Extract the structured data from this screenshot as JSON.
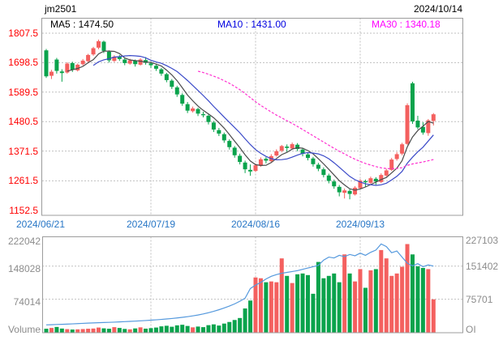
{
  "header": {
    "symbol": "jm2501",
    "date": "2024/10/14"
  },
  "ma_labels": {
    "ma5": "MA5 : 1474.50",
    "ma10": "MA10 : 1431.00",
    "ma30": "MA30 : 1340.18"
  },
  "price_axis_labels": [
    "1807.5",
    "1698.5",
    "1589.5",
    "1480.5",
    "1371.5",
    "1261.5",
    "1152.5"
  ],
  "x_axis_labels": [
    "2024/06/21",
    "2024/07/19",
    "2024/08/16",
    "2024/09/13"
  ],
  "volume_axis": {
    "left_labels": [
      "222042",
      "148028",
      "74014"
    ],
    "left_title": "Volume",
    "right_labels": [
      "227103",
      "151402",
      "75701"
    ],
    "right_title": "OI"
  },
  "colors": {
    "up": "#f4605f",
    "down": "#0aa34c",
    "ma5_line": "#4a4a4a",
    "ma10_line": "#3a49c8",
    "ma30_line": "#ff30d0",
    "oi_line": "#5599dd",
    "price_label": "#ff0000",
    "date_label": "#2776c6",
    "volume_label": "#8c8c8c"
  },
  "chart_data": {
    "type": "candlestick",
    "title": "jm2501 daily K-line with MA5/MA10/MA30, volume and open interest",
    "legend_position": "top-inside",
    "grid": true,
    "price_grid_values": [
      1807.5,
      1698.5,
      1589.5,
      1480.5,
      1371.5,
      1261.5
    ],
    "price_axis_min_label": 1152.5,
    "x_ticks": [
      {
        "index": 0,
        "label": "2024/06/21"
      },
      {
        "index": 20,
        "label": "2024/07/19"
      },
      {
        "index": 40,
        "label": "2024/08/16"
      },
      {
        "index": 60,
        "label": "2024/09/13"
      }
    ],
    "ma_periods": [
      5,
      10,
      30
    ],
    "ma_current": {
      "MA5": 1474.5,
      "MA10": 1431.0,
      "MA30": 1340.18
    },
    "volume_left_ticks": [
      222042,
      148028,
      74014
    ],
    "volume_right_ticks": [
      227103,
      151402,
      75701
    ],
    "volume_grid_right_values": [
      151402,
      75701
    ],
    "ohlc": [
      [
        1744,
        1749,
        1642,
        1648
      ],
      [
        1650,
        1672,
        1638,
        1665
      ],
      [
        1710,
        1716,
        1658,
        1668
      ],
      [
        1666,
        1674,
        1628,
        1660
      ],
      [
        1662,
        1700,
        1658,
        1695
      ],
      [
        1697,
        1702,
        1664,
        1672
      ],
      [
        1670,
        1695,
        1666,
        1691
      ],
      [
        1693,
        1712,
        1688,
        1706
      ],
      [
        1704,
        1731,
        1700,
        1727
      ],
      [
        1729,
        1757,
        1724,
        1752
      ],
      [
        1754,
        1784,
        1748,
        1778
      ],
      [
        1776,
        1780,
        1734,
        1742
      ],
      [
        1739,
        1744,
        1699,
        1707
      ],
      [
        1705,
        1726,
        1701,
        1721
      ],
      [
        1722,
        1727,
        1705,
        1712
      ],
      [
        1710,
        1715,
        1689,
        1697
      ],
      [
        1695,
        1713,
        1691,
        1707
      ],
      [
        1706,
        1710,
        1684,
        1693
      ],
      [
        1691,
        1715,
        1688,
        1710
      ],
      [
        1708,
        1719,
        1691,
        1698
      ],
      [
        1696,
        1702,
        1679,
        1689
      ],
      [
        1687,
        1692,
        1668,
        1676
      ],
      [
        1674,
        1679,
        1650,
        1658
      ],
      [
        1656,
        1661,
        1626,
        1634
      ],
      [
        1632,
        1638,
        1601,
        1609
      ],
      [
        1607,
        1613,
        1572,
        1581
      ],
      [
        1579,
        1585,
        1539,
        1547
      ],
      [
        1545,
        1553,
        1512,
        1521
      ],
      [
        1519,
        1536,
        1514,
        1529
      ],
      [
        1527,
        1532,
        1501,
        1510
      ],
      [
        1508,
        1517,
        1496,
        1504
      ],
      [
        1502,
        1507,
        1470,
        1479
      ],
      [
        1477,
        1483,
        1442,
        1451
      ],
      [
        1449,
        1457,
        1427,
        1436
      ],
      [
        1434,
        1440,
        1402,
        1411
      ],
      [
        1409,
        1415,
        1377,
        1386
      ],
      [
        1384,
        1390,
        1347,
        1356
      ],
      [
        1354,
        1362,
        1322,
        1331
      ],
      [
        1329,
        1336,
        1290,
        1304
      ],
      [
        1302,
        1322,
        1280,
        1296
      ],
      [
        1298,
        1325,
        1294,
        1319
      ],
      [
        1317,
        1348,
        1313,
        1341
      ],
      [
        1343,
        1349,
        1326,
        1336
      ],
      [
        1334,
        1360,
        1330,
        1353
      ],
      [
        1355,
        1378,
        1351,
        1371
      ],
      [
        1373,
        1394,
        1367,
        1390
      ],
      [
        1388,
        1396,
        1369,
        1383
      ],
      [
        1381,
        1403,
        1377,
        1397
      ],
      [
        1395,
        1401,
        1371,
        1379
      ],
      [
        1377,
        1384,
        1352,
        1361
      ],
      [
        1359,
        1365,
        1337,
        1346
      ],
      [
        1344,
        1350,
        1314,
        1323
      ],
      [
        1321,
        1328,
        1297,
        1306
      ],
      [
        1304,
        1311,
        1274,
        1283
      ],
      [
        1281,
        1288,
        1252,
        1261
      ],
      [
        1259,
        1266,
        1232,
        1241
      ],
      [
        1239,
        1246,
        1204,
        1219
      ],
      [
        1217,
        1233,
        1196,
        1226
      ],
      [
        1224,
        1230,
        1193,
        1213
      ],
      [
        1211,
        1242,
        1207,
        1236
      ],
      [
        1234,
        1268,
        1230,
        1262
      ],
      [
        1260,
        1266,
        1240,
        1256
      ],
      [
        1254,
        1277,
        1250,
        1271
      ],
      [
        1269,
        1275,
        1247,
        1259
      ],
      [
        1257,
        1289,
        1253,
        1283
      ],
      [
        1281,
        1306,
        1277,
        1300
      ],
      [
        1302,
        1346,
        1298,
        1340
      ],
      [
        1342,
        1368,
        1336,
        1360
      ],
      [
        1362,
        1402,
        1356,
        1396.5
      ],
      [
        1398,
        1548,
        1394,
        1541
      ],
      [
        1622,
        1628,
        1472,
        1481
      ],
      [
        1484,
        1502,
        1452,
        1459
      ],
      [
        1461,
        1478,
        1432,
        1440
      ],
      [
        1438,
        1490,
        1428,
        1485
      ],
      [
        1483,
        1512,
        1466,
        1507.5
      ]
    ],
    "volume": [
      9000,
      11000,
      13500,
      9500,
      8000,
      7000,
      7500,
      8200,
      9000,
      9500,
      12000,
      10000,
      9000,
      13000,
      11000,
      8500,
      7500,
      9800,
      12500,
      9200,
      10500,
      12000,
      15000,
      16500,
      14000,
      17500,
      19000,
      16000,
      12500,
      14500,
      13000,
      18000,
      20000,
      17000,
      22000,
      26000,
      31000,
      36000,
      60000,
      80000,
      138000,
      136000,
      126000,
      128000,
      126000,
      186000,
      142000,
      124000,
      146000,
      148000,
      144000,
      97000,
      177000,
      136000,
      142000,
      148000,
      126000,
      196000,
      148000,
      128000,
      159000,
      112000,
      156000,
      159000,
      207000,
      186000,
      142000,
      148000,
      165000,
      222042,
      196000,
      166000,
      162000,
      159000,
      83000
    ],
    "open_interest": [
      17000,
      17400,
      17900,
      18300,
      18800,
      19300,
      19900,
      20500,
      21000,
      21500,
      22000,
      22400,
      22800,
      23300,
      23800,
      24400,
      25000,
      25600,
      26300,
      27000,
      27800,
      28600,
      29500,
      30500,
      31600,
      32800,
      34200,
      35800,
      37600,
      39600,
      42000,
      44800,
      48000,
      51600,
      55600,
      60000,
      65000,
      71000,
      78000,
      100000,
      108000,
      114000,
      122000,
      128000,
      132000,
      135000,
      137000,
      139000,
      141000,
      144000,
      147000,
      150000,
      153000,
      165000,
      172000,
      170000,
      176000,
      173000,
      178000,
      175000,
      181000,
      176000,
      183000,
      188000,
      202000,
      196000,
      182000,
      186000,
      172000,
      158000,
      152000,
      157000,
      150000,
      154000,
      151402
    ]
  }
}
